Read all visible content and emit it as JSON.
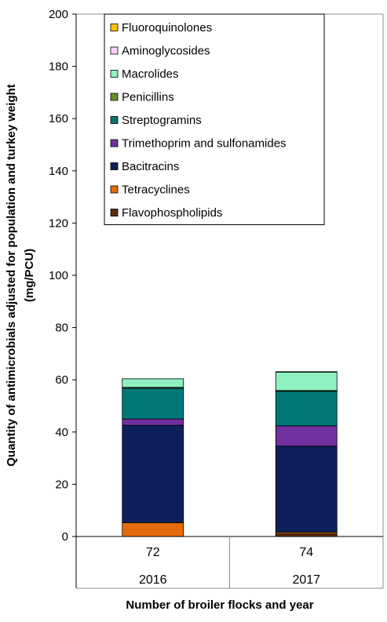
{
  "chart_data": {
    "type": "bar",
    "stacked": true,
    "title": "",
    "ylabel_lines": [
      "Quantity of antimicrobials adjusted for population and turkey weight",
      "(mg/PCU)"
    ],
    "xlabel": "Number of broiler flocks and year",
    "ylim": [
      0,
      200
    ],
    "yticks": [
      0,
      20,
      40,
      60,
      80,
      100,
      120,
      140,
      160,
      180,
      200
    ],
    "categories": [
      {
        "flocks": "72",
        "year": "2016"
      },
      {
        "flocks": "74",
        "year": "2017"
      }
    ],
    "legend_position": "top-right",
    "series": [
      {
        "name": "Flavophospholipids",
        "color": "#5a2d0c",
        "values": [
          0.0,
          1.0
        ]
      },
      {
        "name": "Tetracyclines",
        "color": "#e46c0a",
        "values": [
          5.3,
          0.6
        ]
      },
      {
        "name": "Bacitracins",
        "color": "#0f1f5c",
        "values": [
          37.3,
          33.0
        ]
      },
      {
        "name": "Trimethoprim and sulfonamides",
        "color": "#7030a0",
        "values": [
          2.4,
          7.8
        ]
      },
      {
        "name": "Streptogramins",
        "color": "#007878",
        "values": [
          11.8,
          13.2
        ]
      },
      {
        "name": "Penicillins",
        "color": "#6b8e23",
        "values": [
          0.3,
          0.3
        ]
      },
      {
        "name": "Macrolides",
        "color": "#8ff0c0",
        "values": [
          3.3,
          7.0
        ]
      },
      {
        "name": "Aminoglycosides",
        "color": "#ffd0ff",
        "values": [
          0.0,
          0.0
        ]
      },
      {
        "name": "Fluoroquinolones",
        "color": "#ffc000",
        "values": [
          0.0,
          0.2
        ]
      }
    ]
  }
}
